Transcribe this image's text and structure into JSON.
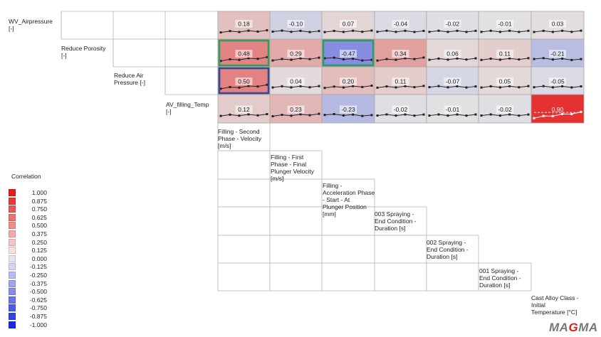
{
  "chart_data": {
    "type": "heatmap",
    "row_labels": [
      "WV_Airpressure\n[-]",
      "Reduce Porosity\n[-]",
      "Reduce Air\nPressure [-]",
      "AV_filling_Temp\n[-]"
    ],
    "column_labels": [
      "Filling - Second\nPhase - Velocity\n[m/s]",
      "Filling - First\nPhase - Final\nPlunger Velocity\n[m/s]",
      "Filling -\nAcceleration Phase\n- Start - At\nPlunger Position\n[mm]",
      "003 Spraying -\nEnd Condition -\nDuration [s]",
      "002 Spraying -\nEnd Condition -\nDuration [s]",
      "001 Spraying -\nEnd Condition -\nDuration [s]",
      "Cast Alloy Class -\nInitial\nTemperature [°C]"
    ],
    "values": [
      [
        0.18,
        -0.1,
        0.07,
        -0.04,
        -0.02,
        -0.01,
        0.03
      ],
      [
        0.48,
        0.29,
        -0.47,
        0.34,
        0.06,
        0.11,
        -0.21
      ],
      [
        0.5,
        0.04,
        0.2,
        0.11,
        -0.07,
        0.05,
        -0.05
      ],
      [
        0.12,
        0.23,
        -0.23,
        -0.02,
        -0.01,
        -0.02,
        0.9
      ]
    ],
    "labels": [
      [
        "0.18",
        "-0.10",
        "0.07",
        "-0.04",
        "-0.02",
        "-0.01",
        "0.03"
      ],
      [
        "0.48",
        "0.29",
        "-0.47",
        "0.34",
        "0.06",
        "0.11",
        "-0.21"
      ],
      [
        "0.50",
        "0.04",
        "0.20",
        "0.11",
        "-0.07",
        "0.05",
        "-0.05"
      ],
      [
        "0.12",
        "0.23",
        "-0.23",
        "-0.02",
        "-0.01",
        "-0.02",
        "0.90"
      ]
    ],
    "highlighted_cells": [
      {
        "row": 1,
        "col": 0,
        "color": "#2e9e5b"
      },
      {
        "row": 1,
        "col": 2,
        "color": "#2e9e5b"
      },
      {
        "row": 2,
        "col": 0,
        "color": "#2b4c9c"
      }
    ],
    "color_scale": {
      "min": -1.0,
      "max": 1.0,
      "negative_color": "#1f2fe0",
      "positive_color": "#e41e1e",
      "neutral_color": "#e3e3e3"
    },
    "legend": {
      "title": "Correlation",
      "placement": "left",
      "items": [
        {
          "label": "1.000",
          "color": "#e41e1e"
        },
        {
          "label": "0.875",
          "color": "#e63a3a"
        },
        {
          "label": "0.750",
          "color": "#e95656"
        },
        {
          "label": "0.625",
          "color": "#ec7272"
        },
        {
          "label": "0.500",
          "color": "#f08e8e"
        },
        {
          "label": "0.375",
          "color": "#f3a9a9"
        },
        {
          "label": "0.250",
          "color": "#f6c4c4"
        },
        {
          "label": "0.125",
          "color": "#f9dfdf"
        },
        {
          "label": "0.000",
          "color": "#e6e6ef"
        },
        {
          "label": "-0.125",
          "color": "#d3d5f8"
        },
        {
          "label": "-0.250",
          "color": "#b9bdf4"
        },
        {
          "label": "-0.375",
          "color": "#9ea4f1"
        },
        {
          "label": "-0.500",
          "color": "#848cee"
        },
        {
          "label": "-0.625",
          "color": "#6973ea"
        },
        {
          "label": "-0.750",
          "color": "#4f5be7"
        },
        {
          "label": "-0.875",
          "color": "#3442e3"
        },
        {
          "label": "-1.000",
          "color": "#1a2ae0"
        }
      ]
    },
    "grid": true
  },
  "branding": {
    "logo_left": "MA",
    "logo_mid": "G",
    "logo_right": "MA"
  }
}
